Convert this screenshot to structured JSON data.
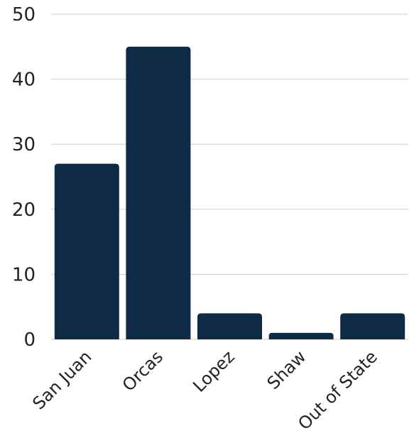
{
  "chart_data": {
    "type": "bar",
    "title": "",
    "xlabel": "",
    "ylabel": "",
    "categories": [
      "San Juan",
      "Orcas",
      "Lopez",
      "Shaw",
      "Out of State"
    ],
    "values": [
      27,
      45,
      4,
      1,
      4
    ],
    "ylim": [
      0,
      50
    ],
    "yticks": [
      0,
      10,
      20,
      30,
      40,
      50
    ],
    "grid": true,
    "legend": "none",
    "bar_color": "#0f2a45",
    "grid_color": "#cfcfcf"
  }
}
